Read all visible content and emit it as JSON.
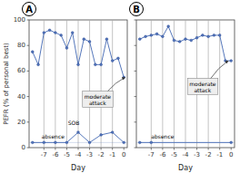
{
  "chart_data": [
    {
      "type": "line",
      "title": "A",
      "xlabel": "Day",
      "ylabel": "PEFR (% of personal best)",
      "xlim": [
        -8.3,
        0.3
      ],
      "ylim": [
        0,
        100
      ],
      "xticks": [
        -7,
        -6,
        -5,
        -4,
        -3,
        -2,
        -1,
        0
      ],
      "yticks": [
        0,
        20,
        40,
        60,
        80,
        100
      ],
      "grid": false,
      "series": [
        {
          "x": [
            -8,
            -7.5,
            -7,
            -6.5,
            -6,
            -5.5,
            -5,
            -4.5,
            -4,
            -3.5,
            -3,
            -2.5,
            -2,
            -1.5,
            -1,
            -0.5,
            0
          ],
          "values": [
            75,
            65,
            90,
            92,
            90,
            88,
            78,
            90,
            65,
            85,
            83,
            65,
            65,
            85,
            68,
            70,
            55
          ],
          "color": "#5577bb",
          "marker": "circle"
        },
        {
          "x": [
            -8,
            -7,
            -6,
            -5,
            -4,
            -3,
            -2,
            -1,
            0
          ],
          "values": [
            4,
            4,
            4,
            4,
            12,
            4,
            10,
            12,
            4
          ],
          "color": "#5577bb",
          "marker": "circle"
        }
      ],
      "vlines": [
        -7,
        -6,
        -5,
        -4,
        -3,
        -2,
        -1
      ],
      "hlines": [
        4
      ],
      "annotations": [
        {
          "text": "absence",
          "x": -7.2,
          "y": 7
        },
        {
          "text": "SOB",
          "x": -4.9,
          "y": 18
        },
        {
          "text": "moderate\nattack",
          "x": -2.3,
          "y": 38,
          "arrow_x": 0.1,
          "arrow_y": 55
        }
      ]
    },
    {
      "type": "line",
      "title": "B",
      "xlabel": "Day",
      "xlim": [
        -8.3,
        0.3
      ],
      "ylim": [
        0,
        100
      ],
      "xticks": [
        -7,
        -6,
        -5,
        -4,
        -3,
        -2,
        -1,
        0
      ],
      "yticks": [
        0,
        20,
        40,
        60,
        80,
        100
      ],
      "grid": false,
      "tick_labels": "x",
      "series": [
        {
          "x": [
            -8,
            -7.5,
            -7,
            -6.5,
            -6,
            -5.5,
            -5,
            -4.5,
            -4,
            -3.5,
            -3,
            -2.5,
            -2,
            -1.5,
            -1,
            -0.5,
            0
          ],
          "values": [
            85,
            87,
            88,
            89,
            87,
            95,
            84,
            83,
            85,
            84,
            86,
            88,
            87,
            88,
            88,
            68,
            68
          ],
          "color": "#5577bb",
          "marker": "circle"
        },
        {
          "x": [
            -8,
            -7,
            0
          ],
          "values": [
            4,
            4,
            4
          ],
          "color": "#5577bb",
          "marker": "circle"
        }
      ],
      "vlines": [
        -7,
        -6,
        -5,
        -4,
        -3,
        -2,
        -1
      ],
      "hlines": [
        4
      ],
      "annotations": [
        {
          "text": "absence",
          "x": -7.0,
          "y": 7
        },
        {
          "text": "moderate\nattack",
          "x": -2.5,
          "y": 48,
          "arrow_x": -0.25,
          "arrow_y": 68
        }
      ]
    }
  ]
}
